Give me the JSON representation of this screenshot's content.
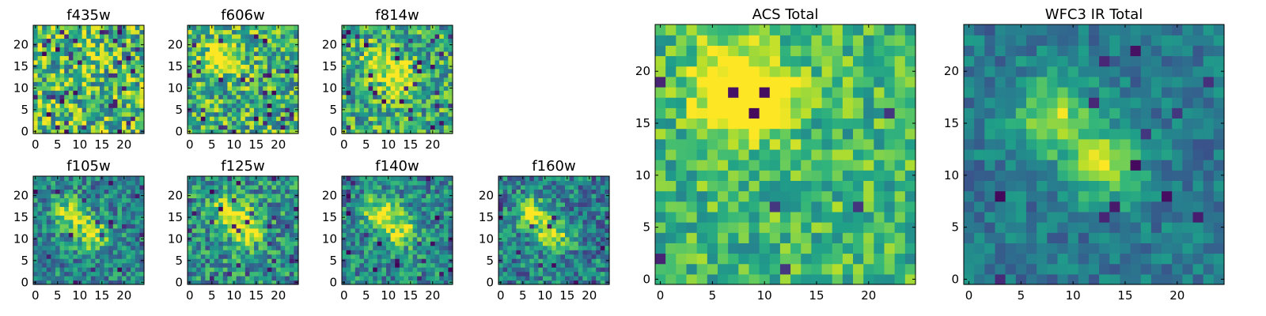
{
  "figure": {
    "background": "#ffffff"
  },
  "colormap": {
    "name": "viridis",
    "stops": [
      "#440154",
      "#482878",
      "#3e4989",
      "#31688e",
      "#26828e",
      "#1f9e89",
      "#35b779",
      "#6ece58",
      "#b5de2b",
      "#fde725"
    ]
  },
  "chart_data": [
    {
      "type": "heatmap",
      "title": "f435w",
      "grid_size": 25,
      "xlim": [
        0,
        24
      ],
      "ylim": [
        0,
        24
      ],
      "xticks": [
        0,
        5,
        10,
        15,
        20
      ],
      "yticks": [
        0,
        5,
        10,
        15,
        20
      ],
      "pattern": "noise",
      "base_level": 0.68,
      "noise_level": 0.36,
      "dark_fraction": 0.07,
      "blob_centers": []
    },
    {
      "type": "heatmap",
      "title": "f606w",
      "grid_size": 25,
      "xlim": [
        0,
        24
      ],
      "ylim": [
        0,
        24
      ],
      "xticks": [
        0,
        5,
        10,
        15,
        20
      ],
      "yticks": [
        0,
        5,
        10,
        15,
        20
      ],
      "pattern": "noise",
      "base_level": 0.64,
      "noise_level": 0.33,
      "dark_fraction": 0.05,
      "blob_centers": [
        [
          7,
          17
        ]
      ]
    },
    {
      "type": "heatmap",
      "title": "f814w",
      "grid_size": 25,
      "xlim": [
        0,
        24
      ],
      "ylim": [
        0,
        24
      ],
      "xticks": [
        0,
        5,
        10,
        15,
        20
      ],
      "yticks": [
        0,
        5,
        10,
        15,
        20
      ],
      "pattern": "noise-with-source",
      "base_level": 0.6,
      "noise_level": 0.32,
      "dark_fraction": 0.05,
      "blob_centers": [
        [
          8,
          16
        ],
        [
          13,
          12
        ]
      ]
    },
    {
      "type": "heatmap",
      "title": "f105w",
      "grid_size": 25,
      "xlim": [
        0,
        24
      ],
      "ylim": [
        0,
        24
      ],
      "xticks": [
        0,
        5,
        10,
        15,
        20
      ],
      "yticks": [
        0,
        5,
        10,
        15,
        20
      ],
      "pattern": "source",
      "base_level": 0.45,
      "noise_level": 0.25,
      "dark_fraction": 0.04,
      "blob_centers": [
        [
          8,
          16
        ],
        [
          13,
          11
        ]
      ]
    },
    {
      "type": "heatmap",
      "title": "f125w",
      "grid_size": 25,
      "xlim": [
        0,
        24
      ],
      "ylim": [
        0,
        24
      ],
      "xticks": [
        0,
        5,
        10,
        15,
        20
      ],
      "yticks": [
        0,
        5,
        10,
        15,
        20
      ],
      "pattern": "source",
      "base_level": 0.5,
      "noise_level": 0.28,
      "dark_fraction": 0.05,
      "blob_centers": [
        [
          9,
          17
        ],
        [
          13,
          12
        ]
      ]
    },
    {
      "type": "heatmap",
      "title": "f140w",
      "grid_size": 25,
      "xlim": [
        0,
        24
      ],
      "ylim": [
        0,
        24
      ],
      "xticks": [
        0,
        5,
        10,
        15,
        20
      ],
      "yticks": [
        0,
        5,
        10,
        15,
        20
      ],
      "pattern": "source",
      "base_level": 0.47,
      "noise_level": 0.25,
      "dark_fraction": 0.03,
      "blob_centers": [
        [
          8,
          16
        ],
        [
          13,
          12
        ]
      ]
    },
    {
      "type": "heatmap",
      "title": "f160w",
      "grid_size": 25,
      "xlim": [
        0,
        24
      ],
      "ylim": [
        0,
        24
      ],
      "xticks": [
        0,
        5,
        10,
        15,
        20
      ],
      "yticks": [
        0,
        5,
        10,
        15,
        20
      ],
      "pattern": "source",
      "base_level": 0.43,
      "noise_level": 0.26,
      "dark_fraction": 0.04,
      "blob_centers": [
        [
          7,
          16
        ],
        [
          12,
          11
        ]
      ]
    },
    {
      "type": "heatmap",
      "title": "ACS Total",
      "grid_size": 25,
      "xlim": [
        0,
        24
      ],
      "ylim": [
        0,
        24
      ],
      "xticks": [
        0,
        5,
        10,
        15,
        20
      ],
      "yticks": [
        0,
        5,
        10,
        15,
        20
      ],
      "pattern": "noise-with-source",
      "base_level": 0.67,
      "noise_level": 0.22,
      "dark_fraction": 0.03,
      "blob_centers": [
        [
          7,
          19
        ],
        [
          9,
          17
        ]
      ]
    },
    {
      "type": "heatmap",
      "title": "WFC3 IR Total",
      "grid_size": 25,
      "xlim": [
        0,
        24
      ],
      "ylim": [
        0,
        24
      ],
      "xticks": [
        0,
        5,
        10,
        15,
        20
      ],
      "yticks": [
        0,
        5,
        10,
        15,
        20
      ],
      "pattern": "source",
      "base_level": 0.4,
      "noise_level": 0.15,
      "dark_fraction": 0.02,
      "blob_centers": [
        [
          8,
          16
        ],
        [
          13,
          11
        ]
      ]
    }
  ]
}
